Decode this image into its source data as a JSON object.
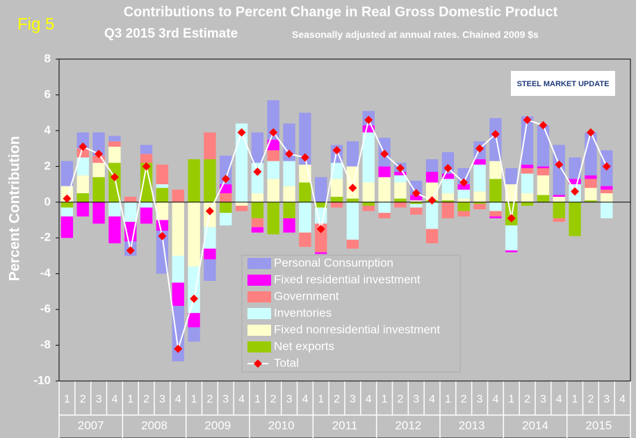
{
  "chart_data": {
    "type": "bar",
    "label": "Fig 5",
    "title": "Contributions to Percent Change in Real Gross Domestic Product",
    "subtitle": "Q3 2015 3rd Estimate",
    "note": "Seasonally adjusted at annual rates. Chained 2009 $s",
    "logo": "STEEL MARKET UPDATE",
    "ylabel": "Percent Contribution",
    "categories": [
      "1",
      "2",
      "3",
      "4",
      "1",
      "2",
      "3",
      "4",
      "1",
      "2",
      "3",
      "4",
      "1",
      "2",
      "3",
      "4",
      "1",
      "2",
      "3",
      "4",
      "1",
      "2",
      "3",
      "4",
      "1",
      "2",
      "3",
      "4",
      "1",
      "2",
      "3",
      "4",
      "1",
      "2",
      "3",
      "4"
    ],
    "years": [
      "2007",
      "2008",
      "2009",
      "2010",
      "2011",
      "2012",
      "2013",
      "2014",
      "2015"
    ],
    "ylim": [
      -10,
      8
    ],
    "yticks": [
      -10,
      -8,
      -6,
      -4,
      -2,
      0,
      2,
      4,
      6,
      8
    ],
    "grid": false,
    "stacked": true,
    "series": [
      {
        "name": "Personal Consumption",
        "color": "#9999ee",
        "values": [
          1.4,
          0.9,
          1.3,
          0.3,
          -0.8,
          0.5,
          -2.4,
          -3.1,
          -0.8,
          -1.2,
          1.6,
          0,
          1.7,
          2.2,
          2.1,
          2.9,
          1.4,
          1.0,
          1.4,
          0.8,
          1.6,
          0.5,
          0.8,
          0.7,
          1.2,
          0.9,
          1.0,
          2.4,
          0.9,
          2.7,
          2.3,
          2.8,
          1.2,
          2.4,
          2.0,
          null
        ]
      },
      {
        "name": "Fixed residential investment",
        "color": "#ff00ff",
        "values": [
          -1.2,
          -0.8,
          -1.2,
          -1.5,
          -1.1,
          -0.9,
          -0.6,
          -1.3,
          -0.8,
          -0.6,
          0.5,
          0,
          -0.3,
          0.6,
          -0.8,
          0,
          -0.1,
          0,
          0,
          0.4,
          0.6,
          0.2,
          0.3,
          0.6,
          0.3,
          0.3,
          0.3,
          -0.1,
          -0.1,
          0.2,
          0.1,
          0.1,
          0.3,
          0.2,
          0.2,
          null
        ]
      },
      {
        "name": "Government",
        "color": "#ff8080",
        "values": [
          0,
          0.5,
          0.4,
          0.3,
          0.3,
          0.5,
          1.1,
          0.7,
          0,
          1.5,
          0.5,
          -0.3,
          -0.5,
          0.6,
          0,
          -0.8,
          -1.6,
          -0.3,
          -0.5,
          -0.3,
          -0.3,
          -0.3,
          -0.4,
          -0.8,
          -0.9,
          -0.3,
          -0.3,
          -0.3,
          0,
          0.3,
          0.4,
          -0.2,
          0,
          0.5,
          0.2,
          null
        ]
      },
      {
        "name": "Inventories",
        "color": "#ccffff",
        "values": [
          -0.5,
          1.0,
          0,
          -0.8,
          -1.1,
          -0.3,
          0.2,
          -1.5,
          -2.6,
          -1.2,
          -0.7,
          4.4,
          1.7,
          1.0,
          1.4,
          -1.7,
          -0.9,
          0.9,
          -2.1,
          2.8,
          -0.6,
          0.4,
          -0.2,
          -1.5,
          0.8,
          0.5,
          1.5,
          -0.5,
          -1.4,
          1.1,
          0,
          0,
          1.0,
          0,
          -0.9,
          null
        ]
      },
      {
        "name": "Fixed nonresidential investment",
        "color": "#ffffcc",
        "values": [
          0.9,
          1.0,
          0.8,
          0.9,
          0,
          0,
          -1.0,
          -3.0,
          -3.6,
          -1.4,
          0,
          -0.2,
          0.5,
          1.3,
          0.9,
          1.0,
          0,
          1.0,
          1.8,
          1.1,
          1.4,
          0.9,
          0.1,
          1.0,
          0.4,
          0.2,
          0.6,
          1.0,
          1.0,
          0.5,
          1.1,
          0.3,
          0,
          0.7,
          0.5,
          null
        ]
      },
      {
        "name": "Net exports",
        "color": "#99cc00",
        "values": [
          -0.3,
          0.5,
          1.4,
          2.2,
          0,
          2.2,
          0.8,
          0,
          2.4,
          2.4,
          -0.6,
          0,
          -0.9,
          -1.8,
          -0.9,
          1.1,
          -0.3,
          0.3,
          0.2,
          -0.2,
          0,
          0.2,
          -0.1,
          0.1,
          0.1,
          -0.5,
          -0.1,
          1.3,
          -1.3,
          -0.2,
          0.4,
          -0.9,
          -1.9,
          0.1,
          0,
          null
        ]
      },
      {
        "name": "Total",
        "type": "line",
        "color": "#ff0000",
        "line_color": "#ffffff",
        "values": [
          0.2,
          3.1,
          2.7,
          1.4,
          -2.7,
          2.0,
          -1.9,
          -8.2,
          -5.4,
          -0.5,
          1.3,
          3.9,
          1.7,
          3.9,
          2.7,
          2.5,
          -1.5,
          2.9,
          0.8,
          4.6,
          2.7,
          1.9,
          0.5,
          0.1,
          1.9,
          1.1,
          3.0,
          3.8,
          -0.9,
          4.6,
          4.3,
          2.1,
          0.6,
          3.9,
          2.0,
          null
        ]
      }
    ]
  }
}
